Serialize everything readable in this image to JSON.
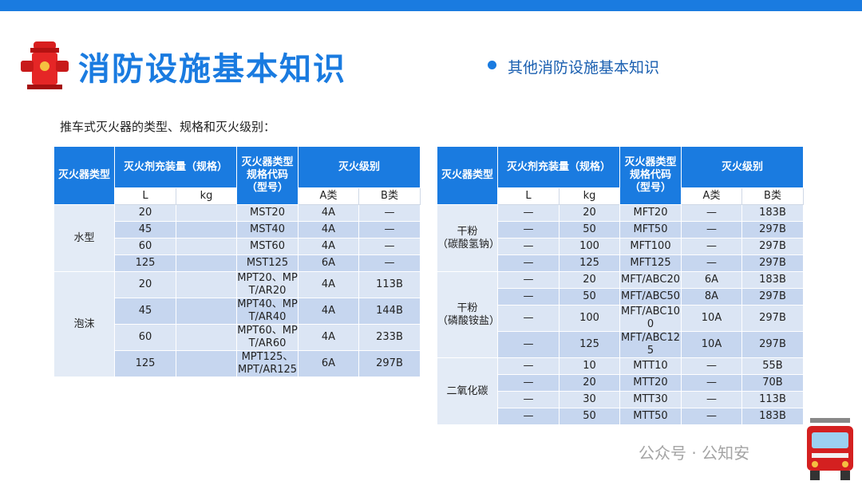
{
  "header": {
    "title": "消防设施基本知识",
    "section": "其他消防设施基本知识"
  },
  "subtitle": "推车式灭火器的类型、规格和灭火级别：",
  "tables": [
    {
      "head": {
        "type": "灭火器类型",
        "amount": "灭火剂充装量（规格）",
        "code": "灭火器类型规格代码（型号）",
        "level": "灭火级别",
        "L": "L",
        "kg": "kg",
        "A": "A类",
        "B": "B类"
      },
      "groups": [
        {
          "type": [
            "水型"
          ],
          "rows": [
            [
              20,
              null,
              "MST20",
              "4A",
              "—"
            ],
            [
              45,
              null,
              "MST40",
              "4A",
              "—"
            ],
            [
              60,
              null,
              "MST60",
              "4A",
              "—"
            ],
            [
              125,
              null,
              "MST125",
              "6A",
              "—"
            ]
          ]
        },
        {
          "type": [
            "泡沫"
          ],
          "rows": [
            [
              20,
              null,
              "MPT20、MPT/AR20",
              "4A",
              "113B"
            ],
            [
              45,
              null,
              "MPT40、MPT/AR40",
              "4A",
              "144B"
            ],
            [
              60,
              null,
              "MPT60、MPT/AR60",
              "4A",
              "233B"
            ],
            [
              125,
              null,
              "MPT125、MPT/AR125",
              "6A",
              "297B"
            ]
          ]
        }
      ]
    },
    {
      "head": {
        "type": "灭火器类型",
        "amount": "灭火剂充装量（规格）",
        "code": "灭火器类型规格代码（型号）",
        "level": "灭火级别",
        "L": "L",
        "kg": "kg",
        "A": "A类",
        "B": "B类"
      },
      "groups": [
        {
          "type": [
            "干粉",
            "（碳酸氢钠）"
          ],
          "rows": [
            [
              "—",
              20,
              "MFT20",
              "—",
              "183B"
            ],
            [
              "—",
              50,
              "MFT50",
              "—",
              "297B"
            ],
            [
              "—",
              100,
              "MFT100",
              "—",
              "297B"
            ],
            [
              "—",
              125,
              "MFT125",
              "—",
              "297B"
            ]
          ]
        },
        {
          "type": [
            "干粉",
            "（磷酸铵盐）"
          ],
          "rows": [
            [
              "—",
              20,
              "MFT/ABC20",
              "6A",
              "183B"
            ],
            [
              "—",
              50,
              "MFT/ABC50",
              "8A",
              "297B"
            ],
            [
              "—",
              100,
              "MFT/ABC100",
              "10A",
              "297B"
            ],
            [
              "—",
              125,
              "MFT/ABC125",
              "10A",
              "297B"
            ]
          ]
        },
        {
          "type": [
            "二氧化碳"
          ],
          "rows": [
            [
              "—",
              10,
              "MTT10",
              "—",
              "55B"
            ],
            [
              "—",
              20,
              "MTT20",
              "—",
              "70B"
            ],
            [
              "—",
              30,
              "MTT30",
              "—",
              "113B"
            ],
            [
              "—",
              50,
              "MTT50",
              "—",
              "183B"
            ]
          ]
        }
      ]
    }
  ],
  "watermark": "公众号 · 公知安"
}
